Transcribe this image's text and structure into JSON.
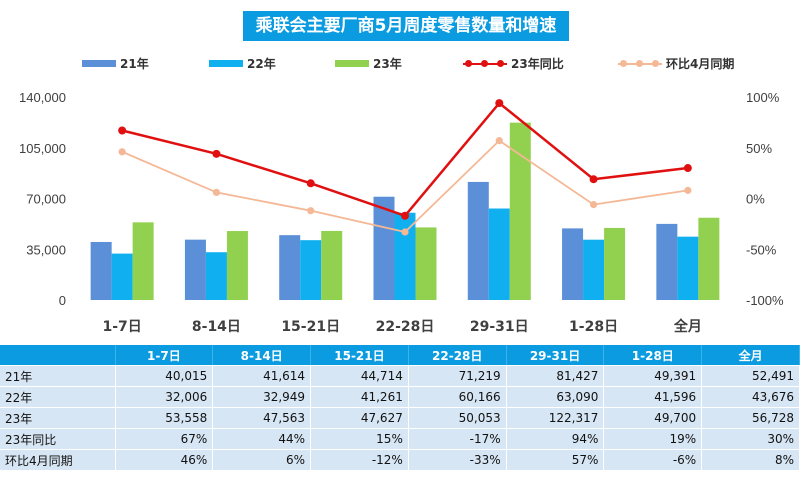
{
  "title": "乘联会主要厂商5月周度零售数量和增速",
  "legend": {
    "s21": "21年",
    "s22": "22年",
    "s23": "23年",
    "yoy": "23年同比",
    "mom": "环比4月同期"
  },
  "colors": {
    "s21": "#5b8fd8",
    "s22": "#10b0f0",
    "s23": "#92d050",
    "yoy": "#e01010",
    "mom": "#f5b896",
    "header": "#0a9be0",
    "cell": "#d7e6f4"
  },
  "chart_data": {
    "type": "bar",
    "categories": [
      "1-7日",
      "8-14日",
      "15-21日",
      "22-28日",
      "29-31日",
      "1-28日",
      "全月"
    ],
    "series": [
      {
        "name": "21年",
        "values": [
          40015,
          41614,
          44714,
          71219,
          81427,
          49391,
          52491
        ]
      },
      {
        "name": "22年",
        "values": [
          32006,
          32949,
          41261,
          60166,
          63090,
          41596,
          43676
        ]
      },
      {
        "name": "23年",
        "values": [
          53558,
          47563,
          47627,
          50053,
          122317,
          49700,
          56728
        ]
      }
    ],
    "line_series": [
      {
        "name": "23年同比",
        "axis": "right",
        "values": [
          67,
          44,
          15,
          -17,
          94,
          19,
          30
        ]
      },
      {
        "name": "环比4月同期",
        "axis": "right",
        "values": [
          46,
          6,
          -12,
          -33,
          57,
          -6,
          8
        ]
      }
    ],
    "ylim": [
      0,
      140000
    ],
    "yticks": [
      "140,000",
      "105,000",
      "70,000",
      "35,000",
      "0"
    ],
    "y2lim": [
      -100,
      100
    ],
    "y2ticks": [
      "100%",
      "50%",
      "0%",
      "-50%",
      "-100%"
    ]
  },
  "table": {
    "corner": "",
    "headers": [
      "1-7日",
      "8-14日",
      "15-21日",
      "22-28日",
      "29-31日",
      "1-28日",
      "全月"
    ],
    "rows": [
      {
        "label": "21年",
        "cells": [
          "40,015",
          "41,614",
          "44,714",
          "71,219",
          "81,427",
          "49,391",
          "52,491"
        ]
      },
      {
        "label": "22年",
        "cells": [
          "32,006",
          "32,949",
          "41,261",
          "60,166",
          "63,090",
          "41,596",
          "43,676"
        ]
      },
      {
        "label": "23年",
        "cells": [
          "53,558",
          "47,563",
          "47,627",
          "50,053",
          "122,317",
          "49,700",
          "56,728"
        ]
      },
      {
        "label": "23年同比",
        "cells": [
          "67%",
          "44%",
          "15%",
          "-17%",
          "94%",
          "19%",
          "30%"
        ]
      },
      {
        "label": "环比4月同期",
        "cells": [
          "46%",
          "6%",
          "-12%",
          "-33%",
          "57%",
          "-6%",
          "8%"
        ]
      }
    ]
  }
}
